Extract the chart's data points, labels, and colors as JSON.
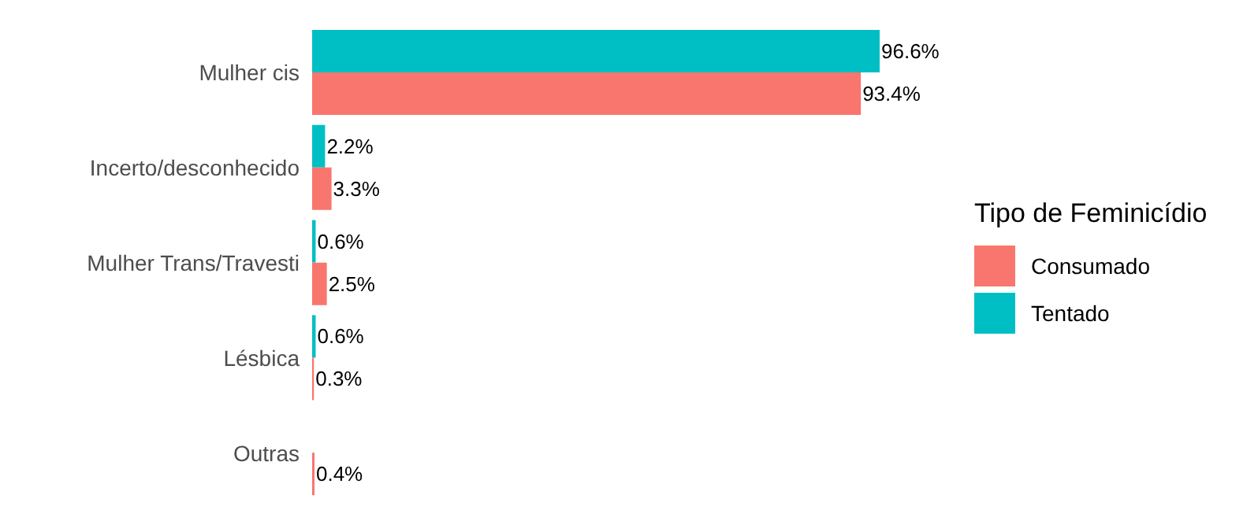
{
  "chart_data": {
    "type": "bar",
    "orientation": "horizontal",
    "legend_title": "Tipo de Feminicídio",
    "legend": "right",
    "categories": [
      "Mulher cis",
      "Incerto/desconhecido",
      "Mulher Trans/Travesti",
      "Lésbica",
      "Outras"
    ],
    "series": [
      {
        "name": "Consumado",
        "color": "#f8766d",
        "values": [
          93.4,
          3.3,
          2.5,
          0.3,
          0.4
        ],
        "value_labels": [
          "93.4%",
          "3.3%",
          "2.5%",
          "0.3%",
          "0.4%"
        ]
      },
      {
        "name": "Tentado",
        "color": "#00bfc4",
        "values": [
          96.6,
          2.2,
          0.6,
          0.6,
          null
        ],
        "value_labels": [
          "96.6%",
          "2.2%",
          "0.6%",
          "0.6%",
          null
        ]
      }
    ]
  }
}
